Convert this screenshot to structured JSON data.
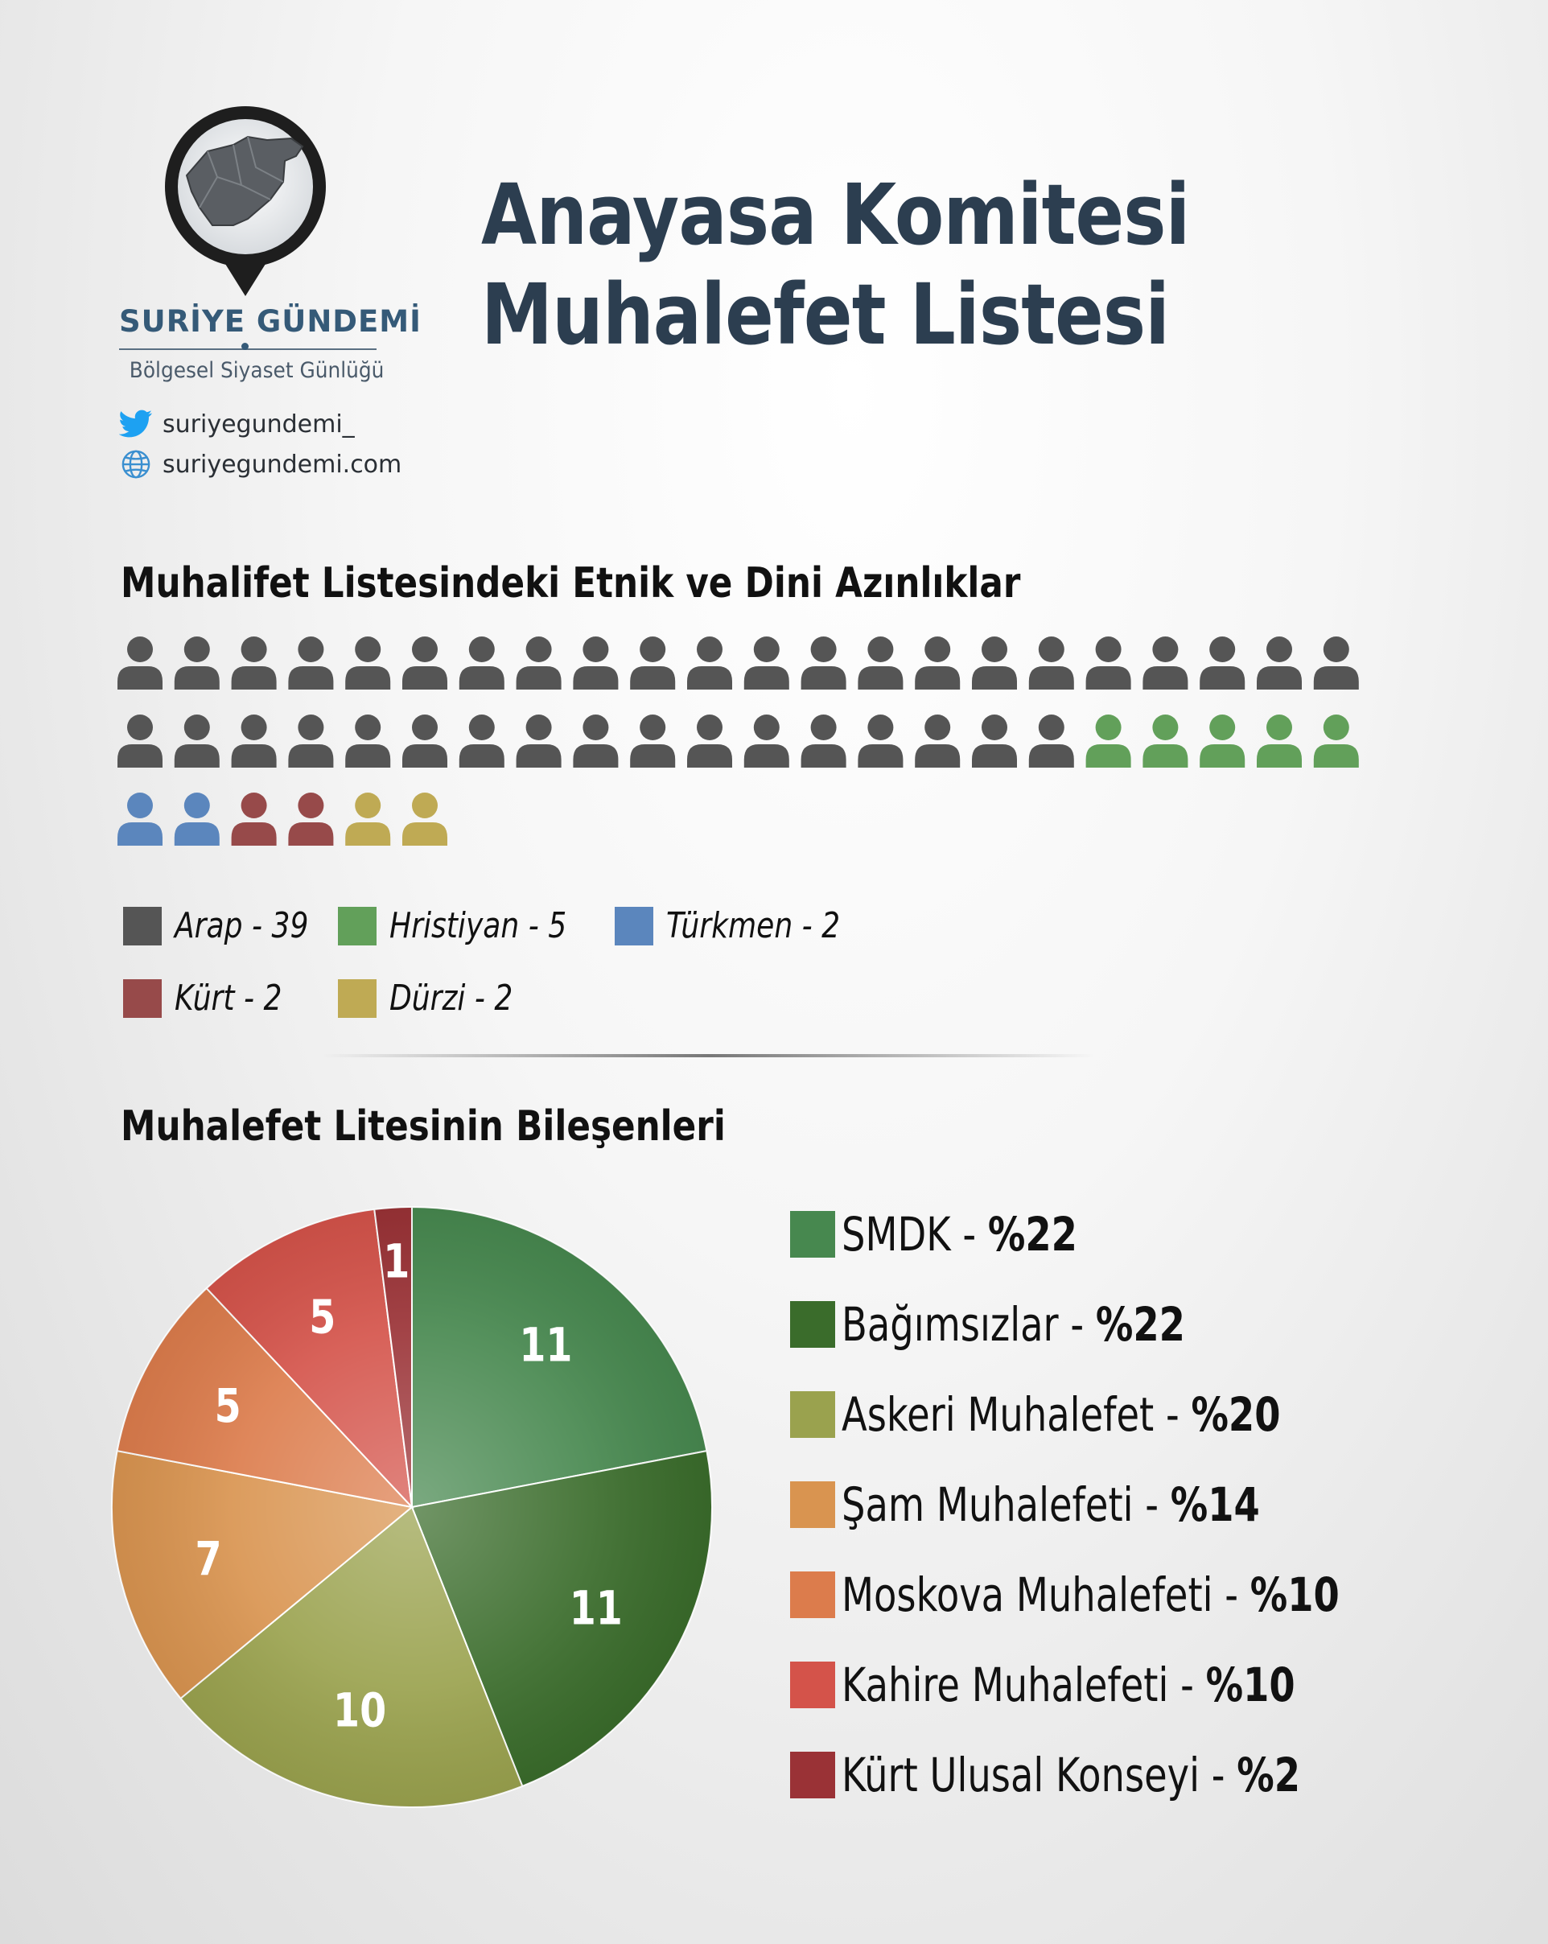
{
  "logo": {
    "brand": "SURİYE GÜNDEMİ",
    "tagline": "Bölgesel Siyaset Günlüğü",
    "twitter": "suriyegundemi_",
    "website": "suriyegundemi.com"
  },
  "title": "Anayasa Komitesi Muhalefet Listesi",
  "colors": {
    "title": "#2c3e50",
    "brand": "#355a78"
  },
  "chart_data": [
    {
      "type": "pictograph",
      "title": "Muhalifet Listesindeki Etnik ve Dini Azınlıklar",
      "series": [
        {
          "name": "Arap",
          "value": 39,
          "color": "#555555"
        },
        {
          "name": "Hristiyan",
          "value": 5,
          "color": "#62a05a"
        },
        {
          "name": "Türkmen",
          "value": 2,
          "color": "#5b86bd"
        },
        {
          "name": "Kürt",
          "value": 2,
          "color": "#974a4a"
        },
        {
          "name": "Dürzi",
          "value": 2,
          "color": "#bfaa54"
        }
      ],
      "legend": [
        "Arap - 39",
        "Hristiyan - 5",
        "Türkmen - 2",
        "Kürt - 2",
        "Dürzi - 2"
      ]
    },
    {
      "type": "pie",
      "title": "Muhalefet Litesinin Bileşenleri",
      "slices": [
        {
          "name": "SMDK",
          "value": 11,
          "percent": "%22",
          "color": "#47884f"
        },
        {
          "name": "Bağımsızlar",
          "value": 11,
          "percent": "%22",
          "color": "#3a6c2b"
        },
        {
          "name": "Askeri Muhalefet",
          "value": 10,
          "percent": "%20",
          "color": "#9aa24e"
        },
        {
          "name": "Şam Muhalefeti",
          "value": 7,
          "percent": "%14",
          "color": "#d99450"
        },
        {
          "name": "Moskova Muhalefeti",
          "value": 5,
          "percent": "%10",
          "color": "#dc7c4c"
        },
        {
          "name": "Kahire Muhalefeti",
          "value": 5,
          "percent": "%10",
          "color": "#d4534a"
        },
        {
          "name": "Kürt Ulusal Konseyi",
          "value": 1,
          "percent": "%2",
          "color": "#9a3236"
        }
      ]
    }
  ]
}
